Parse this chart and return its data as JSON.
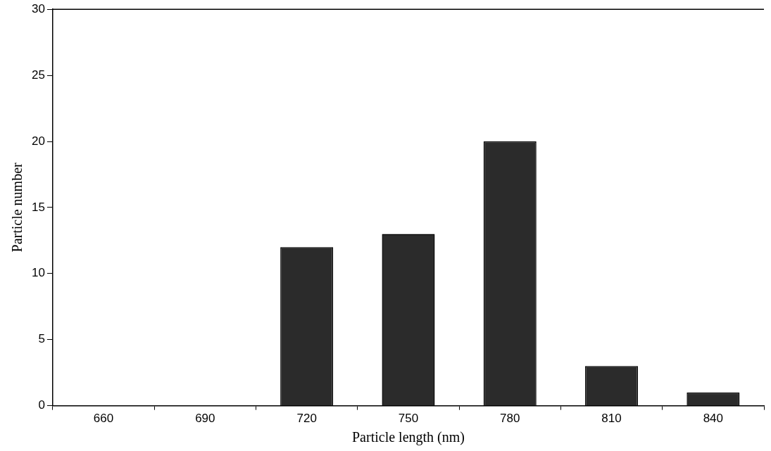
{
  "chart_data": {
    "type": "bar",
    "xlabel": "Particle length (nm)",
    "ylabel": "Particle number",
    "categories": [
      "660",
      "690",
      "720",
      "750",
      "780",
      "810",
      "840"
    ],
    "values": [
      0,
      0,
      12,
      13,
      20,
      3,
      1
    ],
    "color": "#2b2b2b",
    "ylim": [
      0,
      30
    ],
    "yticks": [
      0,
      5,
      10,
      15,
      20,
      25,
      30
    ],
    "grid": false,
    "legend": false
  }
}
